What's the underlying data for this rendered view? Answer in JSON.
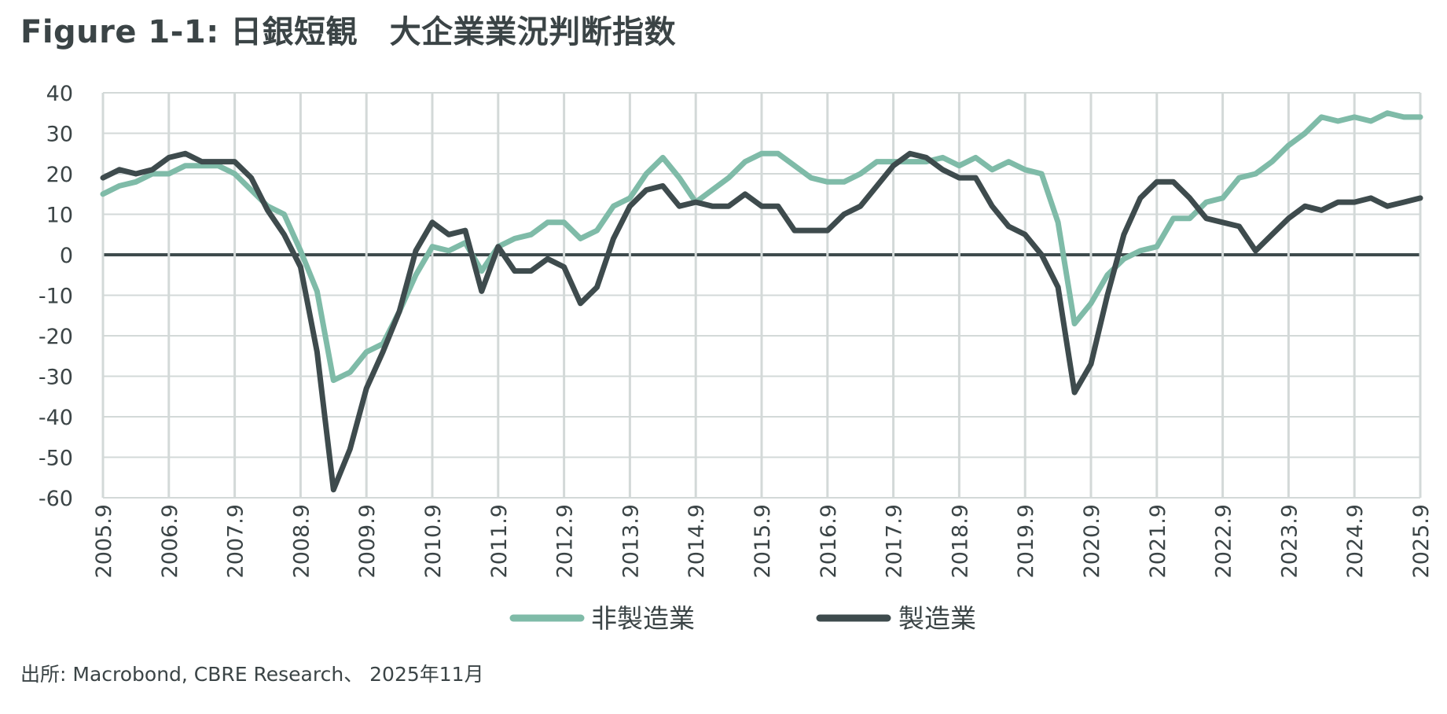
{
  "title": "Figure 1-1: 日銀短観　大企業業況判断指数",
  "source": "出所: Macrobond, CBRE Research、 2025年11月",
  "colors": {
    "non_manufacturing": "#7fbba8",
    "manufacturing": "#3e4b4d",
    "grid": "#d3d9d8",
    "zero_line": "#3e4b4d",
    "text": "#3b4446"
  },
  "chart_data": {
    "type": "line",
    "title": "Figure 1-1: 日銀短観　大企業業況判断指数",
    "xlabel": "",
    "ylabel": "",
    "ylim": [
      -60,
      40
    ],
    "yticks": [
      40,
      30,
      20,
      10,
      0,
      -10,
      -20,
      -30,
      -40,
      -50,
      -60
    ],
    "xlim": [
      2005.75,
      2025.75
    ],
    "x_tick_labels": [
      "2005.9",
      "2006.9",
      "2007.9",
      "2008.9",
      "2009.9",
      "2010.9",
      "2011.9",
      "2012.9",
      "2013.9",
      "2014.9",
      "2015.9",
      "2016.9",
      "2017.9",
      "2018.9",
      "2019.9",
      "2020.9",
      "2021.9",
      "2022.9",
      "2023.9",
      "2024.9",
      "2025.9"
    ],
    "grid": true,
    "legend_position": "bottom",
    "x_start": "2005.9",
    "x_step": "quarterly",
    "series": [
      {
        "name": "非製造業",
        "color": "#7fbba8",
        "values": [
          15,
          17,
          18,
          20,
          20,
          22,
          22,
          22,
          20,
          16,
          12,
          10,
          1,
          -9,
          -31,
          -29,
          -24,
          -22,
          -14,
          -5,
          2,
          1,
          3,
          -4,
          2,
          4,
          5,
          8,
          8,
          4,
          6,
          12,
          14,
          20,
          24,
          19,
          13,
          16,
          19,
          23,
          25,
          25,
          22,
          19,
          18,
          18,
          20,
          23,
          23,
          23,
          23,
          24,
          22,
          24,
          21,
          23,
          21,
          20,
          8,
          -17,
          -12,
          -5,
          -1,
          1,
          2,
          9,
          9,
          13,
          14,
          19,
          20,
          23,
          27,
          30,
          34,
          33,
          34,
          33,
          35,
          34,
          34
        ]
      },
      {
        "name": "製造業",
        "color": "#3e4b4d",
        "values": [
          19,
          21,
          20,
          21,
          24,
          25,
          23,
          23,
          23,
          19,
          11,
          5,
          -3,
          -24,
          -58,
          -48,
          -33,
          -24,
          -14,
          1,
          8,
          5,
          6,
          -9,
          2,
          -4,
          -4,
          -1,
          -3,
          -12,
          -8,
          4,
          12,
          16,
          17,
          12,
          13,
          12,
          12,
          15,
          12,
          12,
          6,
          6,
          6,
          10,
          12,
          17,
          22,
          25,
          24,
          21,
          19,
          19,
          12,
          7,
          5,
          0,
          -8,
          -34,
          -27,
          -10,
          5,
          14,
          18,
          18,
          14,
          9,
          8,
          7,
          1,
          5,
          9,
          12,
          11,
          13,
          13,
          14,
          12,
          13,
          14
        ]
      }
    ]
  }
}
